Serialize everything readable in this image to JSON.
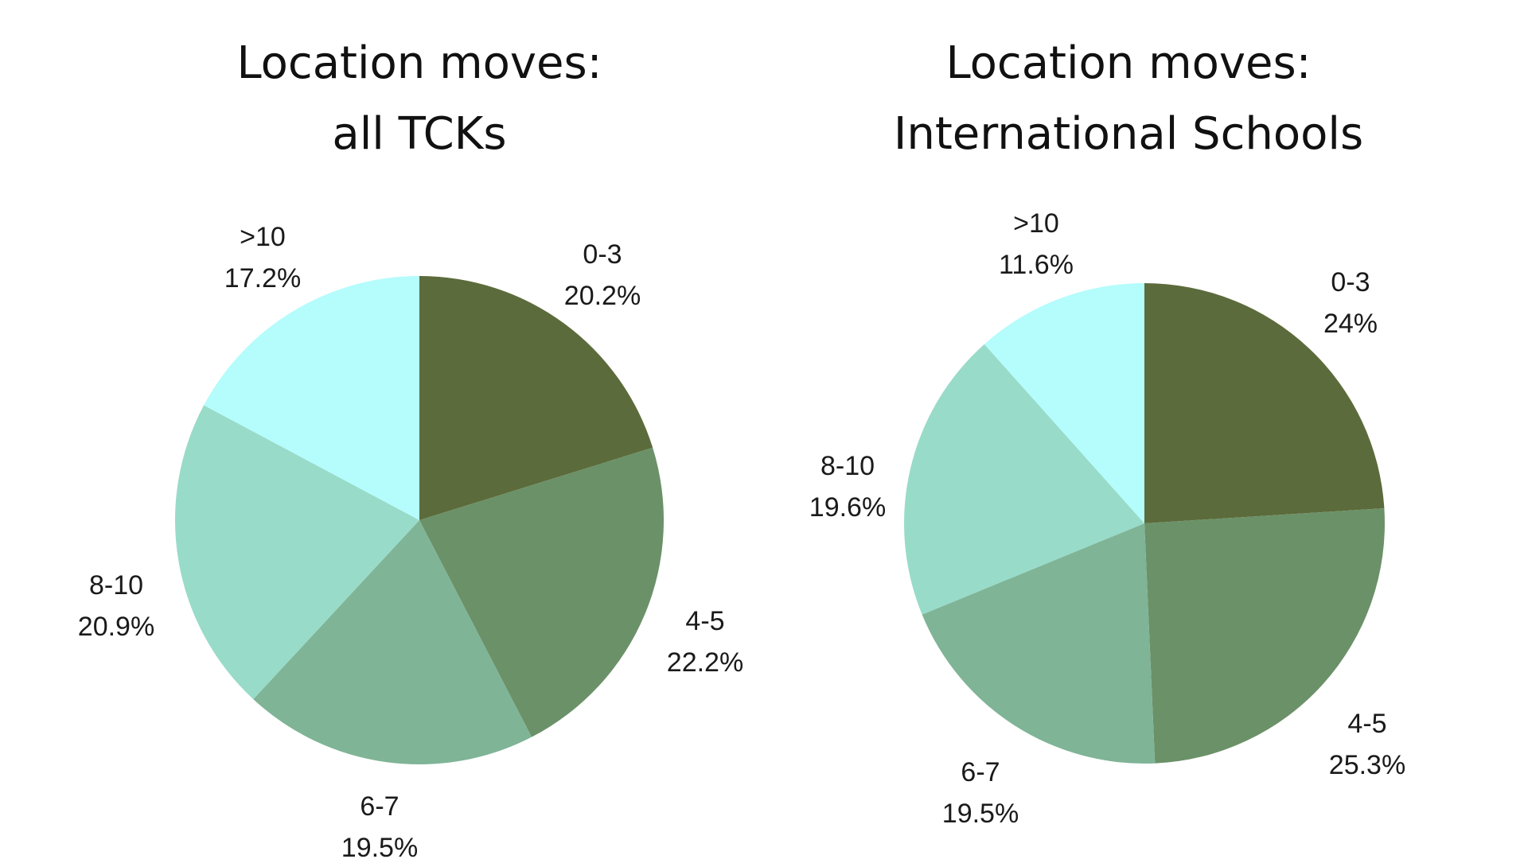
{
  "chart_data": [
    {
      "type": "pie",
      "title_line1": "Location moves:",
      "title_line2": "all TCKs",
      "slices": [
        {
          "category": "0-3",
          "value": 20.2,
          "label": "20.2%",
          "color": "#5c6b3b"
        },
        {
          "category": "4-5",
          "value": 22.2,
          "label": "22.2%",
          "color": "#6b9168"
        },
        {
          "category": "6-7",
          "value": 19.5,
          "label": "19.5%",
          "color": "#7fb496"
        },
        {
          "category": "8-10",
          "value": 20.9,
          "label": "20.9%",
          "color": "#98dbc9"
        },
        {
          "category": ">10",
          "value": 17.2,
          "label": "17.2%",
          "color": "#b5fcfc"
        }
      ]
    },
    {
      "type": "pie",
      "title_line1": "Location moves:",
      "title_line2": "International Schools",
      "slices": [
        {
          "category": "0-3",
          "value": 24,
          "label": "24%",
          "color": "#5c6b3b"
        },
        {
          "category": "4-5",
          "value": 25.3,
          "label": "25.3%",
          "color": "#6b9168"
        },
        {
          "category": "6-7",
          "value": 19.5,
          "label": "19.5%",
          "color": "#7fb496"
        },
        {
          "category": "8-10",
          "value": 19.6,
          "label": "19.6%",
          "color": "#98dbc9"
        },
        {
          "category": ">10",
          "value": 11.6,
          "label": "11.6%",
          "color": "#b5fcfc"
        }
      ]
    }
  ]
}
